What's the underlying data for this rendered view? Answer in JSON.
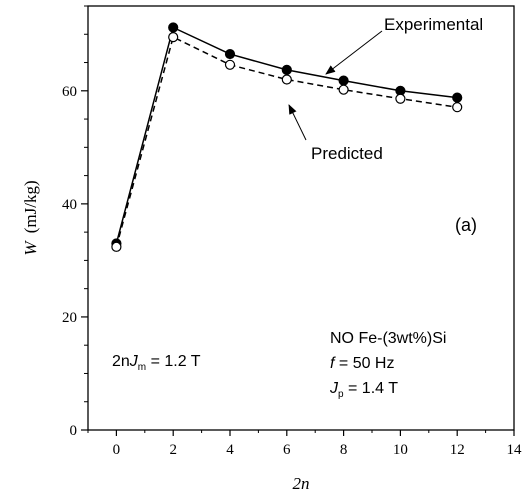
{
  "chart_data": {
    "type": "line",
    "xlabel": "2n",
    "ylabel_main": "W",
    "ylabel_unit": "(mJ/kg)",
    "xlim": [
      -1,
      14
    ],
    "ylim": [
      0,
      75
    ],
    "x_ticks": [
      0,
      2,
      4,
      6,
      8,
      10,
      12,
      14
    ],
    "y_ticks": [
      0,
      20,
      40,
      60
    ],
    "grid": false,
    "series": [
      {
        "name": "Experimental",
        "marker": "filled-circle",
        "line": "solid",
        "color": "#000000",
        "x": [
          0,
          2,
          4,
          6,
          8,
          10,
          12
        ],
        "y": [
          33.0,
          71.2,
          66.5,
          63.7,
          61.8,
          60.0,
          58.8
        ]
      },
      {
        "name": "Predicted",
        "marker": "open-circle",
        "line": "dashed",
        "color": "#000000",
        "x": [
          0,
          2,
          4,
          6,
          8,
          10,
          12
        ],
        "y": [
          32.4,
          69.5,
          64.6,
          62.0,
          60.2,
          58.6,
          57.1
        ]
      }
    ],
    "annotations": {
      "panel_label": "(a)",
      "condition_left": {
        "prefix": "2n",
        "sym": "J",
        "sub": "m",
        "rest": " = 1.2 T"
      },
      "material": "NO Fe-(3wt%)Si",
      "frequency": {
        "sym": "f",
        "rest": " = 50 Hz"
      },
      "peak": {
        "sym": "J",
        "sub": "p",
        "rest": " = 1.4 T"
      }
    }
  }
}
